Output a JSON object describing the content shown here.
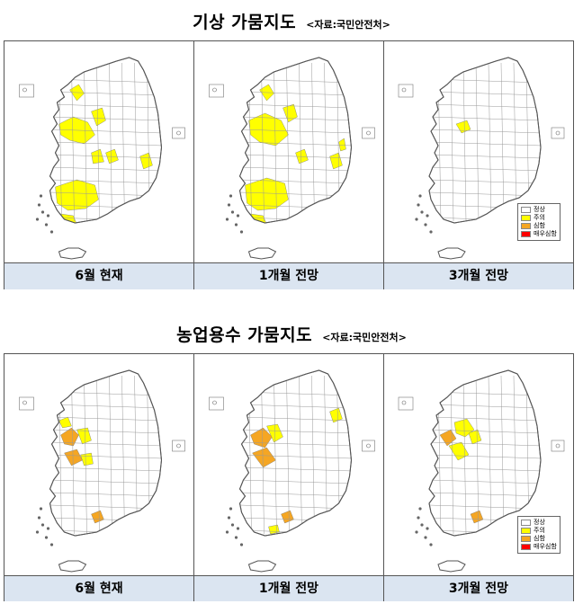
{
  "colors": {
    "normal": "#ffffff",
    "caution": "#ffff00",
    "serious": "#f5a623",
    "very_serious": "#ff0000",
    "label_bg": "#dbe5f1",
    "border": "#555555"
  },
  "sections": [
    {
      "title": "기상 가뭄지도",
      "source": "<자료:국민안전처>",
      "panels": [
        {
          "label": "6월 현재",
          "map_icon": "korea-drought-map-meteorological-current",
          "legend": false
        },
        {
          "label": "1개월 전망",
          "map_icon": "korea-drought-map-meteorological-1month",
          "legend": false
        },
        {
          "label": "3개월 전망",
          "map_icon": "korea-drought-map-meteorological-3month",
          "legend": true
        }
      ]
    },
    {
      "title": "농업용수 가뭄지도",
      "source": "<자료:국민안전처>",
      "panels": [
        {
          "label": "6월 현재",
          "map_icon": "korea-drought-map-agricultural-current",
          "legend": false
        },
        {
          "label": "1개월 전망",
          "map_icon": "korea-drought-map-agricultural-1month",
          "legend": false
        },
        {
          "label": "3개월 전망",
          "map_icon": "korea-drought-map-agricultural-3month",
          "legend": true
        }
      ]
    }
  ],
  "legend": {
    "items": [
      {
        "label": "정상",
        "color": "#ffffff"
      },
      {
        "label": "주의",
        "color": "#ffff00"
      },
      {
        "label": "심함",
        "color": "#f5a623"
      },
      {
        "label": "매우심함",
        "color": "#ff0000"
      }
    ]
  }
}
